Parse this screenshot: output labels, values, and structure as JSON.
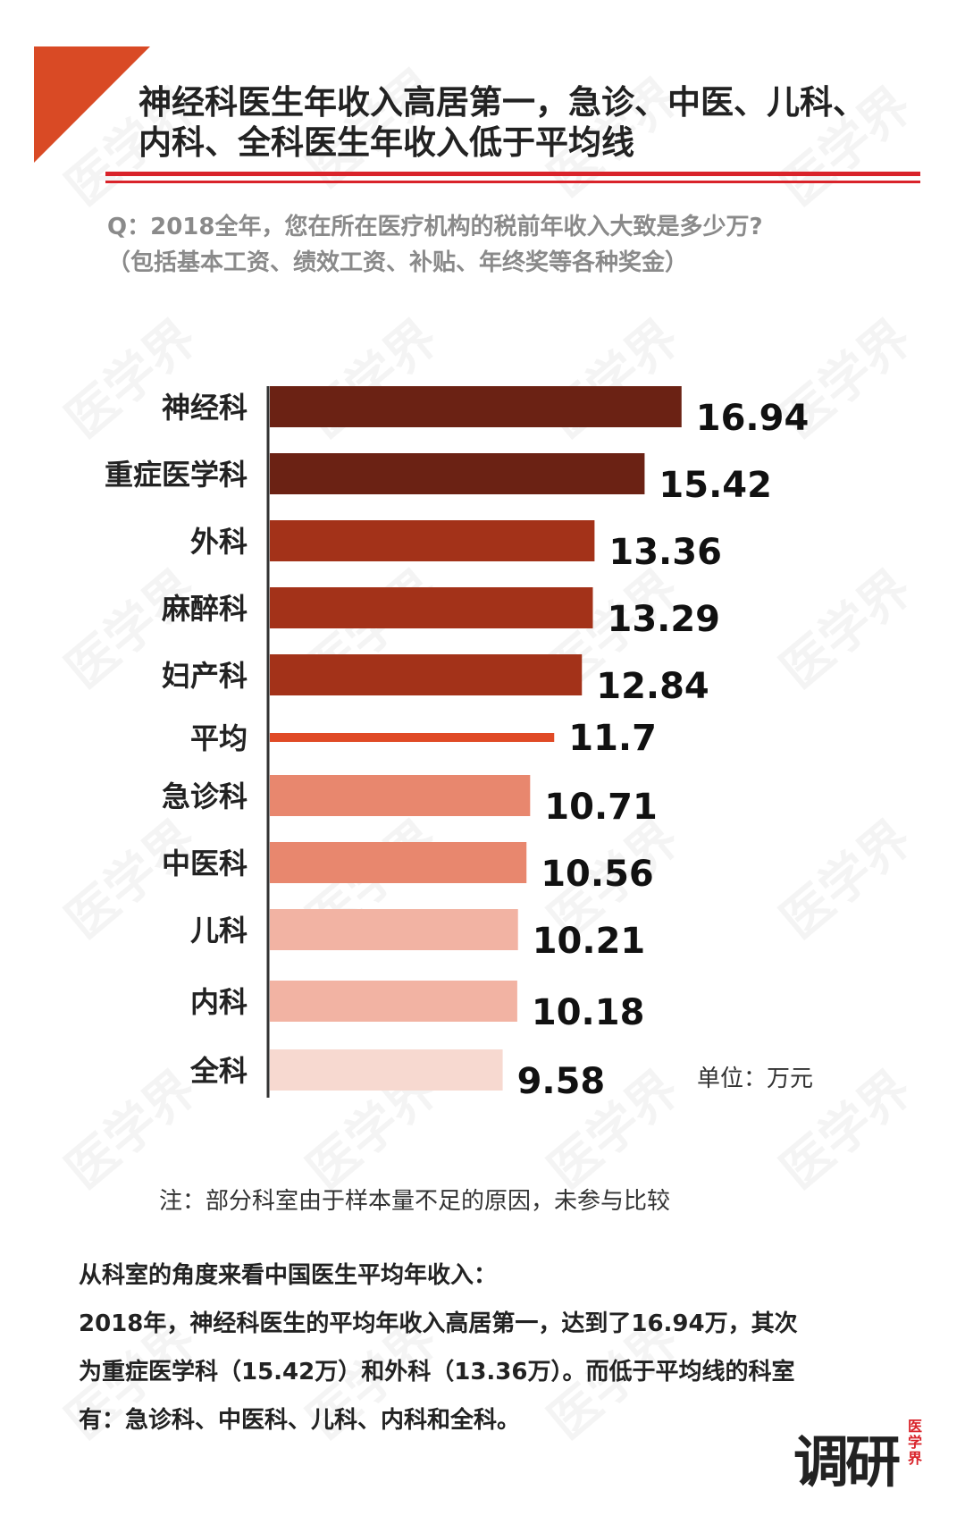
{
  "header": {
    "title_lines": [
      "神经科医生年收入高居第一，急诊、中医、儿科、",
      "内科、全科医生年收入低于平均线"
    ],
    "question_lines": [
      "Q：2018全年，您在所在医疗机构的税前年收入大致是多少万?",
      "（包括基本工资、绩效工资、补贴、年终奖等各种奖金）"
    ]
  },
  "watermark": "医学界",
  "unit_label": "单位：万元",
  "note": "注：部分科室由于样本量不足的原因，未参与比较",
  "summary": {
    "heading": "从科室的角度来看中国医生平均年收入：",
    "lines": [
      "2018年，神经科医生的平均年收入高居第一，达到了16.94万，其次",
      "为重症医学科（15.42万）和外科（13.36万）。而低于平均线的科室",
      "有：急诊科、中医科、儿科、内科和全科。"
    ]
  },
  "logo": {
    "main": "调研",
    "sub": "医学界"
  },
  "chart_data": {
    "type": "bar",
    "orientation": "horizontal",
    "categories": [
      "神经科",
      "重症医学科",
      "外科",
      "麻醉科",
      "妇产科",
      "平均",
      "急诊科",
      "中医科",
      "儿科",
      "内科",
      "全科"
    ],
    "values": [
      16.94,
      15.42,
      13.36,
      13.29,
      12.84,
      11.7,
      10.71,
      10.56,
      10.21,
      10.18,
      9.58
    ],
    "value_labels": [
      "16.94",
      "15.42",
      "13.36",
      "13.29",
      "12.84",
      "11.7",
      "10.71",
      "10.56",
      "10.21",
      "10.18",
      "9.58"
    ],
    "colors": [
      "#6b2214",
      "#6b2214",
      "#a33219",
      "#a33219",
      "#a33219",
      "#e04a26",
      "#e8876e",
      "#e8876e",
      "#f2b3a3",
      "#f2b3a3",
      "#f7d9d0"
    ],
    "average_index": 5,
    "unit": "万元"
  }
}
